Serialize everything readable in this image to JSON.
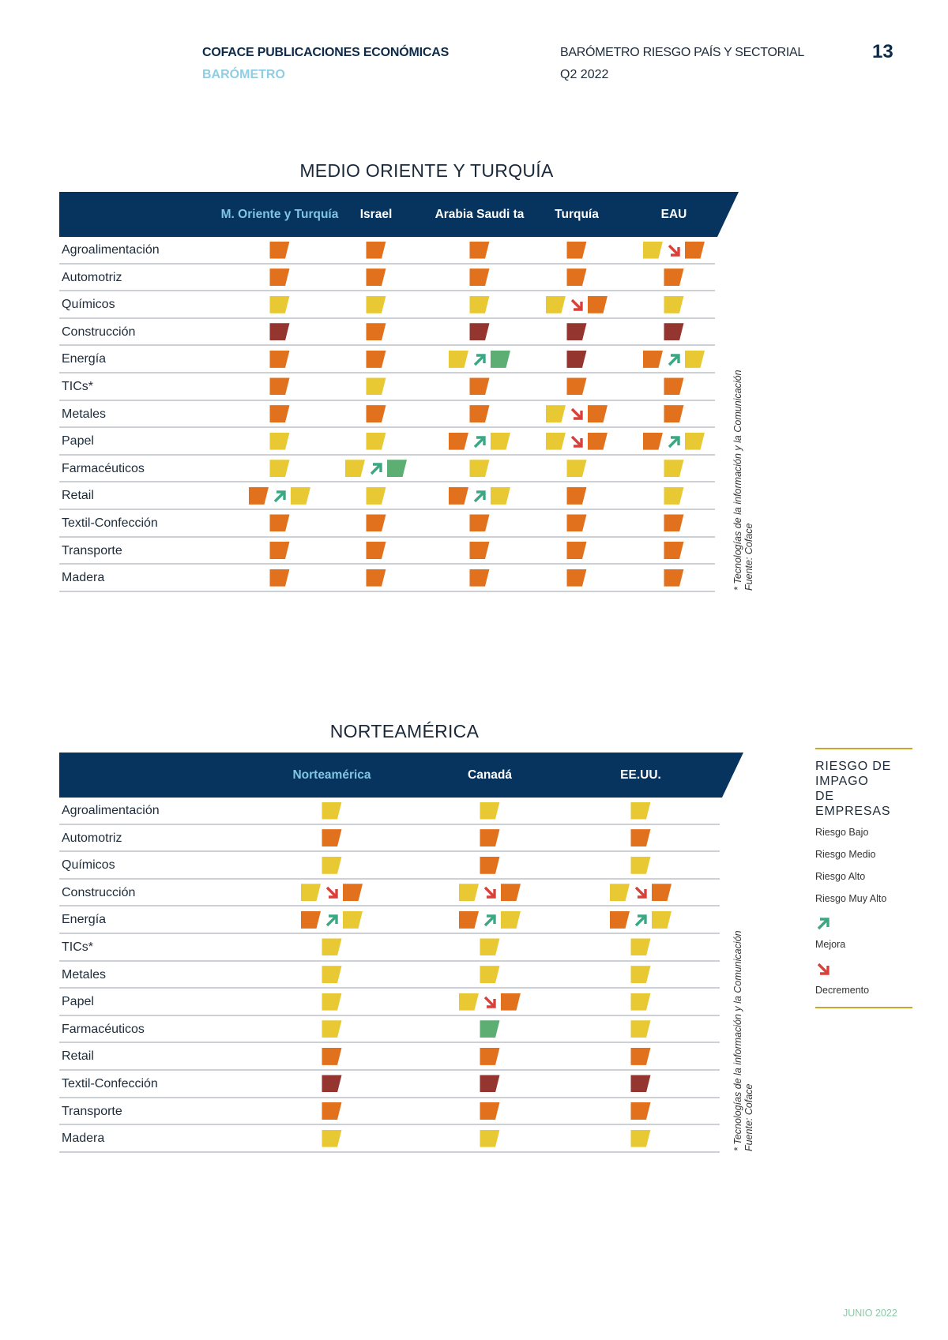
{
  "header": {
    "publisher": "COFACE PUBLICACIONES ECONÓMICAS",
    "section": "BARÓMETRO",
    "report": "BARÓMETRO RIESGO PAÍS Y SECTORIAL",
    "period": "Q2 2022",
    "page_number": "13"
  },
  "colors": {
    "navy": "#06345f",
    "bajo": "#5cae72",
    "medio": "#e9c933",
    "alto": "#e2711d",
    "muy_alto": "#94362f",
    "mejora": "#3aa882",
    "decremento": "#d9403a",
    "legend_rule": "#c9a62c"
  },
  "tables": [
    {
      "title": "MEDIO ORIENTE Y TURQUÍA",
      "columns": [
        "M. Oriente y Turquía",
        "Israel",
        "Arabia Saudi ta",
        "Turquía",
        "EAU"
      ],
      "rows": [
        {
          "sector": "Agroalimentación",
          "cells": [
            [
              "alto"
            ],
            [
              "alto"
            ],
            [
              "alto"
            ],
            [
              "alto"
            ],
            [
              "medio",
              "down",
              "alto"
            ]
          ]
        },
        {
          "sector": "Automotriz",
          "cells": [
            [
              "alto"
            ],
            [
              "alto"
            ],
            [
              "alto"
            ],
            [
              "alto"
            ],
            [
              "alto"
            ]
          ]
        },
        {
          "sector": "Químicos",
          "cells": [
            [
              "medio"
            ],
            [
              "medio"
            ],
            [
              "medio"
            ],
            [
              "medio",
              "down",
              "alto"
            ],
            [
              "medio"
            ]
          ]
        },
        {
          "sector": "Construcción",
          "cells": [
            [
              "muy_alto"
            ],
            [
              "alto"
            ],
            [
              "muy_alto"
            ],
            [
              "muy_alto"
            ],
            [
              "muy_alto"
            ]
          ]
        },
        {
          "sector": "Energía",
          "cells": [
            [
              "alto"
            ],
            [
              "alto"
            ],
            [
              "medio",
              "up",
              "bajo"
            ],
            [
              "muy_alto"
            ],
            [
              "alto",
              "up",
              "medio"
            ]
          ]
        },
        {
          "sector": "TICs*",
          "cells": [
            [
              "alto"
            ],
            [
              "medio"
            ],
            [
              "alto"
            ],
            [
              "alto"
            ],
            [
              "alto"
            ]
          ]
        },
        {
          "sector": "Metales",
          "cells": [
            [
              "alto"
            ],
            [
              "alto"
            ],
            [
              "alto"
            ],
            [
              "medio",
              "down",
              "alto"
            ],
            [
              "alto"
            ]
          ]
        },
        {
          "sector": "Papel",
          "cells": [
            [
              "medio"
            ],
            [
              "medio"
            ],
            [
              "alto",
              "up",
              "medio"
            ],
            [
              "medio",
              "down",
              "alto"
            ],
            [
              "alto",
              "up",
              "medio"
            ]
          ]
        },
        {
          "sector": "Farmacéuticos",
          "cells": [
            [
              "medio"
            ],
            [
              "medio",
              "up",
              "bajo"
            ],
            [
              "medio"
            ],
            [
              "medio"
            ],
            [
              "medio"
            ]
          ]
        },
        {
          "sector": "Retail",
          "cells": [
            [
              "alto",
              "up",
              "medio"
            ],
            [
              "medio"
            ],
            [
              "alto",
              "up",
              "medio"
            ],
            [
              "alto"
            ],
            [
              "medio"
            ]
          ]
        },
        {
          "sector": "Textil-Confección",
          "cells": [
            [
              "alto"
            ],
            [
              "alto"
            ],
            [
              "alto"
            ],
            [
              "alto"
            ],
            [
              "alto"
            ]
          ]
        },
        {
          "sector": "Transporte",
          "cells": [
            [
              "alto"
            ],
            [
              "alto"
            ],
            [
              "alto"
            ],
            [
              "alto"
            ],
            [
              "alto"
            ]
          ]
        },
        {
          "sector": "Madera",
          "cells": [
            [
              "alto"
            ],
            [
              "alto"
            ],
            [
              "alto"
            ],
            [
              "alto"
            ],
            [
              "alto"
            ]
          ]
        }
      ],
      "footnote": "* Tecnologías de la información y la Comunicación",
      "source": "Fuente: Coface"
    },
    {
      "title": "NORTEAMÉRICA",
      "columns": [
        "Norteamérica",
        "Canadá",
        "EE.UU."
      ],
      "rows": [
        {
          "sector": "Agroalimentación",
          "cells": [
            [
              "medio"
            ],
            [
              "medio"
            ],
            [
              "medio"
            ]
          ]
        },
        {
          "sector": "Automotriz",
          "cells": [
            [
              "alto"
            ],
            [
              "alto"
            ],
            [
              "alto"
            ]
          ]
        },
        {
          "sector": "Químicos",
          "cells": [
            [
              "medio"
            ],
            [
              "alto"
            ],
            [
              "medio"
            ]
          ]
        },
        {
          "sector": "Construcción",
          "cells": [
            [
              "medio",
              "down",
              "alto"
            ],
            [
              "medio",
              "down",
              "alto"
            ],
            [
              "medio",
              "down",
              "alto"
            ]
          ]
        },
        {
          "sector": "Energía",
          "cells": [
            [
              "alto",
              "up",
              "medio"
            ],
            [
              "alto",
              "up",
              "medio"
            ],
            [
              "alto",
              "up",
              "medio"
            ]
          ]
        },
        {
          "sector": "TICs*",
          "cells": [
            [
              "medio"
            ],
            [
              "medio"
            ],
            [
              "medio"
            ]
          ]
        },
        {
          "sector": "Metales",
          "cells": [
            [
              "medio"
            ],
            [
              "medio"
            ],
            [
              "medio"
            ]
          ]
        },
        {
          "sector": "Papel",
          "cells": [
            [
              "medio"
            ],
            [
              "medio",
              "down",
              "alto"
            ],
            [
              "medio"
            ]
          ]
        },
        {
          "sector": "Farmacéuticos",
          "cells": [
            [
              "medio"
            ],
            [
              "bajo"
            ],
            [
              "medio"
            ]
          ]
        },
        {
          "sector": "Retail",
          "cells": [
            [
              "alto"
            ],
            [
              "alto"
            ],
            [
              "alto"
            ]
          ]
        },
        {
          "sector": "Textil-Confección",
          "cells": [
            [
              "muy_alto"
            ],
            [
              "muy_alto"
            ],
            [
              "muy_alto"
            ]
          ]
        },
        {
          "sector": "Transporte",
          "cells": [
            [
              "alto"
            ],
            [
              "alto"
            ],
            [
              "alto"
            ]
          ]
        },
        {
          "sector": "Madera",
          "cells": [
            [
              "medio"
            ],
            [
              "medio"
            ],
            [
              "medio"
            ]
          ]
        }
      ],
      "footnote": "* Tecnologías de la información y la Comunicación",
      "source": "Fuente: Coface"
    }
  ],
  "legend": {
    "title_lines": [
      "RIESGO DE",
      "IMPAGO",
      "DE EMPRESAS"
    ],
    "items": [
      {
        "key": "bajo",
        "label": "Riesgo Bajo"
      },
      {
        "key": "medio",
        "label": "Riesgo Medio"
      },
      {
        "key": "alto",
        "label": "Riesgo Alto"
      },
      {
        "key": "muy_alto",
        "label": "Riesgo Muy Alto"
      },
      {
        "key": "up",
        "label": "Mejora"
      },
      {
        "key": "down",
        "label": "Decremento"
      }
    ]
  },
  "footer": {
    "date": "JUNIO 2022"
  }
}
